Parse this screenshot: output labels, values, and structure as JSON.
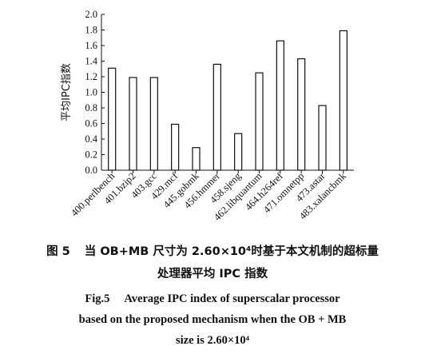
{
  "chart_data": {
    "type": "bar",
    "categories": [
      "400.perlbench",
      "401.bzip2",
      "403.gcc",
      "429.mcf",
      "445.gobmk",
      "456.hmmer",
      "458.sjeng",
      "462.libquantum",
      "464.h264ref",
      "471.omnetpp",
      "473.astar",
      "483.xalancbmk"
    ],
    "values": [
      1.31,
      1.19,
      1.19,
      0.59,
      0.29,
      1.36,
      0.47,
      1.25,
      1.66,
      1.43,
      0.83,
      1.79
    ],
    "ylabel": "平均IPC指数",
    "xlabel": "",
    "ylim": [
      0,
      2.0
    ],
    "yticks": [
      "0.0",
      "0.2",
      "0.4",
      "0.6",
      "0.8",
      "1.0",
      "1.2",
      "1.4",
      "1.6",
      "1.8",
      "2.0"
    ],
    "grid": false,
    "bar_fill": "#ffffff",
    "bar_stroke": "#111111"
  },
  "caption": {
    "cn_number": "图 5",
    "cn_line1": "当 OB+MB 尺寸为 2.60×10⁴时基于本文机制的超标量",
    "cn_line2": "处理器平均 IPC 指数",
    "en_number": "Fig.5",
    "en_line1": "Average IPC index of superscalar processor",
    "en_line2": "based on the proposed mechanism when the OB + MB",
    "en_line3": "size is 2.60×10⁴"
  }
}
